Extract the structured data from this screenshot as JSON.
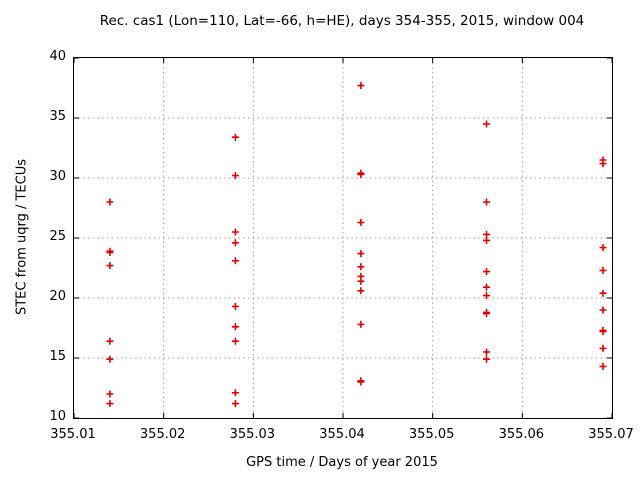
{
  "title": "Rec. cas1 (Lon=110, Lat=-66, h=HE), days 354-355, 2015, window 004",
  "axes": {
    "xlabel": "GPS time / Days of year 2015",
    "ylabel": "STEC from uqrg / TECUs",
    "x_ticks": [
      "355.01",
      "355.02",
      "355.03",
      "355.04",
      "355.05",
      "355.06",
      "355.07"
    ],
    "y_ticks": [
      "10",
      "15",
      "20",
      "25",
      "30",
      "35",
      "40"
    ]
  },
  "colors": {
    "marker": "#e00000",
    "grid": "#9c9c9c",
    "border": "#000000",
    "background": "#ffffff"
  },
  "chart_data": {
    "type": "scatter",
    "marker": "plus",
    "title": "Rec. cas1 (Lon=110, Lat=-66, h=HE), days 354-355, 2015, window 004",
    "xlabel": "GPS time / Days of year 2015",
    "ylabel": "STEC from uqrg / TECUs",
    "xlim": [
      355.01,
      355.07
    ],
    "ylim": [
      10,
      40
    ],
    "grid": true,
    "legend": "none",
    "series": [
      {
        "name": "STEC",
        "color": "#e00000",
        "points": [
          [
            355.014,
            28.0
          ],
          [
            355.014,
            23.9
          ],
          [
            355.014,
            23.8
          ],
          [
            355.014,
            22.7
          ],
          [
            355.014,
            16.4
          ],
          [
            355.014,
            14.9
          ],
          [
            355.014,
            12.0
          ],
          [
            355.014,
            11.2
          ],
          [
            355.028,
            33.4
          ],
          [
            355.028,
            30.2
          ],
          [
            355.028,
            25.5
          ],
          [
            355.028,
            24.6
          ],
          [
            355.028,
            23.1
          ],
          [
            355.028,
            19.3
          ],
          [
            355.028,
            17.6
          ],
          [
            355.028,
            16.4
          ],
          [
            355.028,
            12.1
          ],
          [
            355.028,
            11.2
          ],
          [
            355.042,
            37.7
          ],
          [
            355.042,
            30.4
          ],
          [
            355.042,
            30.3
          ],
          [
            355.042,
            26.3
          ],
          [
            355.042,
            23.7
          ],
          [
            355.042,
            22.6
          ],
          [
            355.042,
            21.8
          ],
          [
            355.042,
            21.4
          ],
          [
            355.042,
            20.6
          ],
          [
            355.042,
            17.8
          ],
          [
            355.042,
            13.1
          ],
          [
            355.042,
            13.0
          ],
          [
            355.056,
            34.5
          ],
          [
            355.056,
            28.0
          ],
          [
            355.056,
            25.3
          ],
          [
            355.056,
            24.8
          ],
          [
            355.056,
            22.2
          ],
          [
            355.056,
            20.9
          ],
          [
            355.056,
            20.2
          ],
          [
            355.056,
            18.8
          ],
          [
            355.056,
            18.7
          ],
          [
            355.056,
            15.5
          ],
          [
            355.056,
            14.9
          ],
          [
            355.069,
            31.5
          ],
          [
            355.069,
            31.2
          ],
          [
            355.069,
            24.2
          ],
          [
            355.069,
            22.3
          ],
          [
            355.069,
            20.4
          ],
          [
            355.069,
            19.0
          ],
          [
            355.069,
            17.3
          ],
          [
            355.069,
            17.2
          ],
          [
            355.069,
            15.8
          ],
          [
            355.069,
            14.3
          ]
        ]
      }
    ]
  }
}
